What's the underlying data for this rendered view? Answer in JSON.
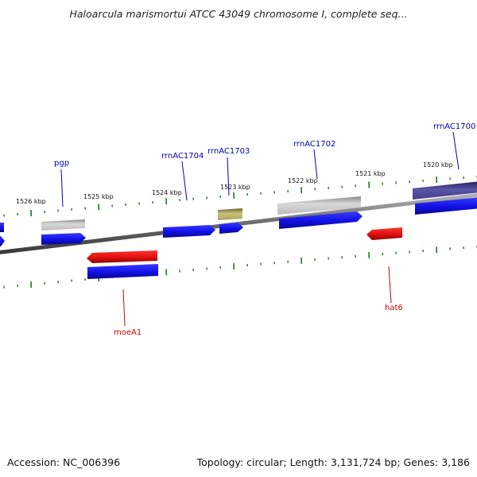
{
  "title": "Haloarcula marismortui ATCC 43049 chromosome I, complete seq...",
  "footer": {
    "accession": "Accession: NC_006396",
    "summary": "Topology: circular; Length: 3,131,724 bp; Genes: 3,186"
  },
  "colors": {
    "background": "#ffffff",
    "backbone": "#7a7a7a",
    "tick": "#1f7a1f",
    "cds": "#1010e6",
    "rRNA": "#b5b5b5",
    "tRNA": "#a9a25a",
    "misc": "#44408a",
    "highlight": "#e01010",
    "label_blue": "#0000b0",
    "label_red": "#cc0000"
  },
  "ruler_labels": [
    "1526 kbp",
    "1525 kbp",
    "1524 kbp",
    "1523 kbp",
    "1522 kbp",
    "1521 kbp",
    "1520 kbp"
  ],
  "gene_labels": [
    {
      "text": "pgp",
      "color": "label_blue"
    },
    {
      "text": "rrnAC1704",
      "color": "label_blue"
    },
    {
      "text": "rrnAC1703",
      "color": "label_blue"
    },
    {
      "text": "rrnAC1702",
      "color": "label_blue"
    },
    {
      "text": "rrnAC1700",
      "color": "label_blue"
    },
    {
      "text": "moeA1",
      "color": "label_red"
    },
    {
      "text": "hat6",
      "color": "label_red"
    }
  ]
}
